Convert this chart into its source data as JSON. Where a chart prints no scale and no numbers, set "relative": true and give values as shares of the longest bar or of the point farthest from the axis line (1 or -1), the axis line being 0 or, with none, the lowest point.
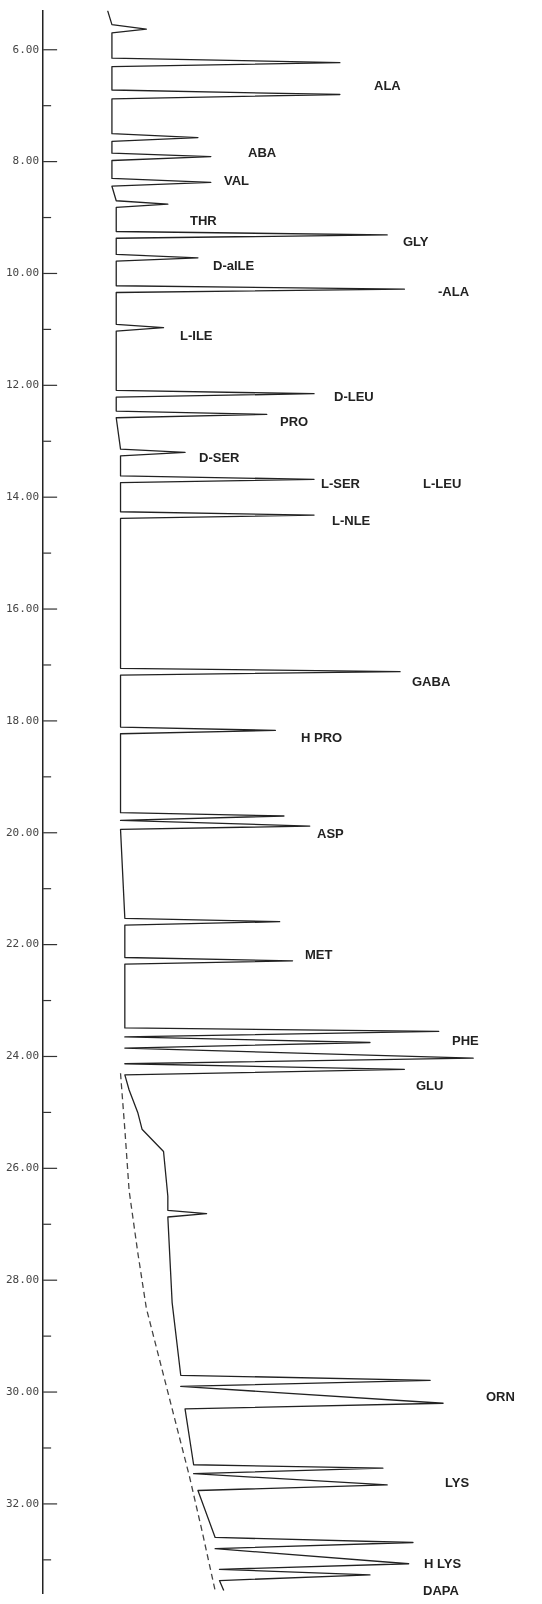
{
  "chart_data": {
    "type": "line",
    "orientation": "horizontal",
    "relative": true,
    "tick_labels": "y",
    "ylim": [
      33.6,
      5.3
    ],
    "yticks": [
      {
        "value": 6,
        "label": "6.00"
      },
      {
        "value": 7,
        "label": null
      },
      {
        "value": 8,
        "label": "8.00"
      },
      {
        "value": 9,
        "label": null
      },
      {
        "value": 10,
        "label": "10.00"
      },
      {
        "value": 11,
        "label": null
      },
      {
        "value": 12,
        "label": "12.00"
      },
      {
        "value": 13,
        "label": null
      },
      {
        "value": 14,
        "label": "14.00"
      },
      {
        "value": 15,
        "label": null
      },
      {
        "value": 16,
        "label": "16.00"
      },
      {
        "value": 17,
        "label": null
      },
      {
        "value": 18,
        "label": "18.00"
      },
      {
        "value": 19,
        "label": null
      },
      {
        "value": 20,
        "label": "20.00"
      },
      {
        "value": 21,
        "label": null
      },
      {
        "value": 22,
        "label": "22.00"
      },
      {
        "value": 23,
        "label": null
      },
      {
        "value": 24,
        "label": "24.00"
      },
      {
        "value": 25,
        "label": null
      },
      {
        "value": 26,
        "label": "26.00"
      },
      {
        "value": 27,
        "label": null
      },
      {
        "value": 28,
        "label": "28.00"
      },
      {
        "value": 29,
        "label": null
      },
      {
        "value": 30,
        "label": "30.00"
      },
      {
        "value": 31,
        "label": null
      },
      {
        "value": 32,
        "label": "32.00"
      },
      {
        "value": 33,
        "label": null
      }
    ],
    "series": [
      {
        "color": "#222222",
        "line_style": "solid",
        "x": [
          5.3,
          5.55,
          5.63,
          5.7,
          6.15,
          6.23,
          6.3,
          6.72,
          6.8,
          6.88,
          7.5,
          7.57,
          7.64,
          7.85,
          7.91,
          7.98,
          8.3,
          8.37,
          8.44,
          8.7,
          8.76,
          8.82,
          9.25,
          9.31,
          9.37,
          9.66,
          9.72,
          9.78,
          10.22,
          10.28,
          10.34,
          10.91,
          10.97,
          11.03,
          12.09,
          12.15,
          12.21,
          12.46,
          12.52,
          12.58,
          13.14,
          13.2,
          13.26,
          13.62,
          13.68,
          13.74,
          14.26,
          14.32,
          14.38,
          17.06,
          17.12,
          17.18,
          18.11,
          18.17,
          18.23,
          19.64,
          19.7,
          19.78,
          19.88,
          19.94,
          21.53,
          21.59,
          21.65,
          22.23,
          22.29,
          22.35,
          23.49,
          23.55,
          23.65,
          23.75,
          23.85,
          24.03,
          24.13,
          24.23,
          24.33,
          24.6,
          25.0,
          25.3,
          25.7,
          26.5,
          26.75,
          26.81,
          26.87,
          28.4,
          29.7,
          29.79,
          29.9,
          30.2,
          30.3,
          31.3,
          31.36,
          31.46,
          31.66,
          31.76,
          32.6,
          32.69,
          32.8,
          33.07,
          33.17,
          33.27,
          33.37,
          33.55
        ],
        "values": [
          0.15,
          0.16,
          0.24,
          0.16,
          0.16,
          0.69,
          0.16,
          0.16,
          0.69,
          0.16,
          0.16,
          0.36,
          0.16,
          0.16,
          0.39,
          0.16,
          0.16,
          0.39,
          0.16,
          0.17,
          0.29,
          0.17,
          0.17,
          0.8,
          0.17,
          0.17,
          0.36,
          0.17,
          0.17,
          0.84,
          0.17,
          0.17,
          0.28,
          0.17,
          0.17,
          0.63,
          0.17,
          0.17,
          0.52,
          0.17,
          0.18,
          0.33,
          0.18,
          0.18,
          0.63,
          0.18,
          0.18,
          0.63,
          0.18,
          0.18,
          0.83,
          0.18,
          0.18,
          0.54,
          0.18,
          0.18,
          0.56,
          0.18,
          0.62,
          0.18,
          0.19,
          0.55,
          0.19,
          0.19,
          0.58,
          0.19,
          0.19,
          0.92,
          0.19,
          0.76,
          0.19,
          1.0,
          0.19,
          0.84,
          0.19,
          0.2,
          0.22,
          0.23,
          0.28,
          0.29,
          0.29,
          0.38,
          0.29,
          0.3,
          0.32,
          0.9,
          0.32,
          0.93,
          0.33,
          0.35,
          0.79,
          0.35,
          0.8,
          0.36,
          0.4,
          0.86,
          0.4,
          0.85,
          0.41,
          0.76,
          0.41,
          0.42
        ]
      },
      {
        "color": "#444444",
        "line_style": "dashed",
        "x": [
          24.3,
          25.3,
          26.4,
          27.5,
          28.5,
          29.7,
          30.6,
          31.5,
          32.5,
          33.55
        ],
        "values": [
          0.18,
          0.19,
          0.2,
          0.22,
          0.24,
          0.28,
          0.31,
          0.34,
          0.37,
          0.4
        ]
      }
    ],
    "annotations": [
      "ALA",
      "ABA",
      "VAL",
      "THR",
      "GLY",
      "D-aILE",
      "-ALA",
      "L-ILE",
      "D-LEU",
      "PRO",
      "D-SER",
      "L-SER",
      "L-LEU",
      "L-NLE",
      "GABA",
      "H PRO",
      "ASP",
      "MET",
      "PHE",
      "GLU",
      "ORN",
      "LYS",
      "H LYS",
      "DAPA"
    ]
  }
}
